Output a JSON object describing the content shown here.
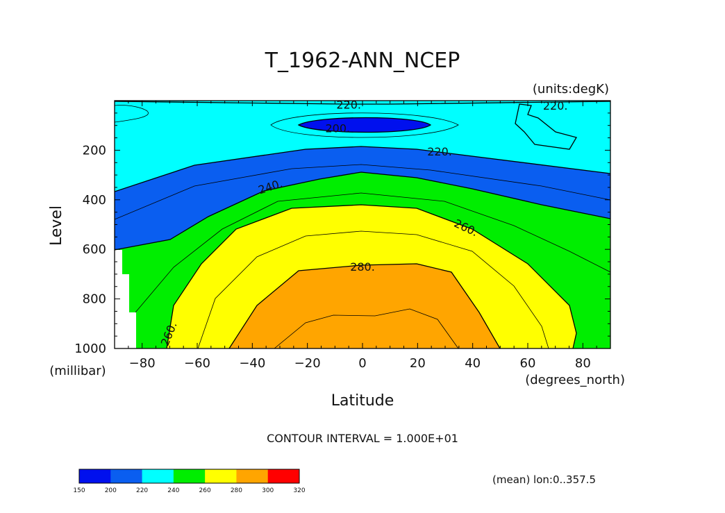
{
  "chart_data": {
    "type": "contour",
    "title": "T_1962-ANN_NCEP",
    "units_label": "(units:degK)",
    "xlabel": "Latitude",
    "xunit": "(degrees_north)",
    "ylabel": "Level",
    "yunit": "(millibar)",
    "x_ticks": [
      "-80",
      "-60",
      "-40",
      "-20",
      "0",
      "20",
      "40",
      "60",
      "80"
    ],
    "y_ticks": [
      "200",
      "400",
      "600",
      "800",
      "1000"
    ],
    "xlim": [
      -90,
      90
    ],
    "ylim": [
      0,
      1000
    ],
    "y_inverted": true,
    "contour_interval": "CONTOUR INTERVAL = 1.000E+01",
    "note": "(mean) lon:0..357.5",
    "contour_labels": [
      {
        "text": "220.",
        "lat": -5,
        "lev": 15
      },
      {
        "text": "200.",
        "lat": -9,
        "lev": 110
      },
      {
        "text": "220.",
        "lat": 70,
        "lev": 20
      },
      {
        "text": "220.",
        "lat": 28,
        "lev": 205
      },
      {
        "text": "240.",
        "lat": -33,
        "lev": 345
      },
      {
        "text": "260.",
        "lat": 37,
        "lev": 510
      },
      {
        "text": "280.",
        "lat": 0,
        "lev": 670
      },
      {
        "text": "260.",
        "lat": -69,
        "lev": 930
      }
    ],
    "colorbar": {
      "levels": [
        "150",
        "200",
        "220",
        "240",
        "260",
        "280",
        "300",
        "320"
      ],
      "colors": [
        "#0010ee",
        "#0a5ef0",
        "#00ffff",
        "#00ee00",
        "#ffff00",
        "#ffa500",
        "#ff0000"
      ]
    },
    "fill_colors": {
      "below200": "#0010ee",
      "b200_220": "#0a5ef0",
      "b220_240": "#00ffff",
      "b240_260": "#00ee00",
      "b260_280": "#ffff00",
      "b280_300": "#ffa500"
    }
  }
}
